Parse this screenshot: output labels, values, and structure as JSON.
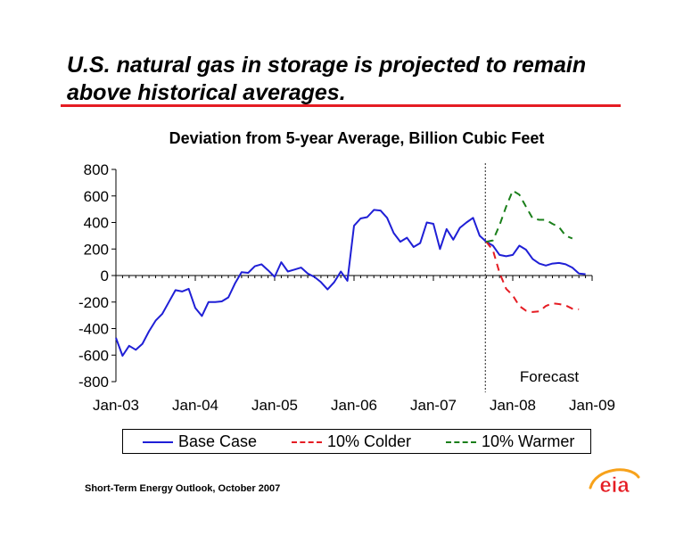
{
  "slide": {
    "title": "U.S. natural gas in storage is projected to remain above historical averages.",
    "footnote": "Short-Term Energy Outlook, October 2007",
    "logo_text": "eia"
  },
  "colors": {
    "title_rule": "#e51c23",
    "base_case": "#1f1fd6",
    "colder": "#e51c23",
    "warmer": "#1a7f1a",
    "logo_red": "#e51c23",
    "logo_orange": "#f7a21b"
  },
  "chart_data": {
    "type": "line",
    "title": "Deviation from 5-year Average, Billion Cubic Feet",
    "ylim": [
      -800,
      800
    ],
    "yticks": [
      800,
      600,
      400,
      200,
      0,
      -200,
      -400,
      -600,
      -800
    ],
    "xlim": [
      "2003-01",
      "2009-01"
    ],
    "xtick_labels": [
      "Jan-03",
      "Jan-04",
      "Jan-05",
      "Jan-06",
      "Jan-07",
      "Jan-08",
      "Jan-09"
    ],
    "forecast_start": "2007-09",
    "forecast_label": "Forecast",
    "legend_position": "bottom",
    "series": [
      {
        "name": "Base Case",
        "style": "solid",
        "color": "#1f1fd6",
        "points": [
          [
            "2003-01",
            -470
          ],
          [
            "2003-02",
            -605
          ],
          [
            "2003-03",
            -530
          ],
          [
            "2003-04",
            -560
          ],
          [
            "2003-05",
            -515
          ],
          [
            "2003-06",
            -420
          ],
          [
            "2003-07",
            -340
          ],
          [
            "2003-08",
            -290
          ],
          [
            "2003-09",
            -200
          ],
          [
            "2003-10",
            -110
          ],
          [
            "2003-11",
            -120
          ],
          [
            "2003-12",
            -100
          ],
          [
            "2004-01",
            -245
          ],
          [
            "2004-02",
            -305
          ],
          [
            "2004-03",
            -200
          ],
          [
            "2004-04",
            -200
          ],
          [
            "2004-05",
            -195
          ],
          [
            "2004-06",
            -165
          ],
          [
            "2004-07",
            -60
          ],
          [
            "2004-08",
            25
          ],
          [
            "2004-09",
            20
          ],
          [
            "2004-10",
            70
          ],
          [
            "2004-11",
            85
          ],
          [
            "2004-12",
            40
          ],
          [
            "2005-01",
            -10
          ],
          [
            "2005-02",
            100
          ],
          [
            "2005-03",
            30
          ],
          [
            "2005-04",
            45
          ],
          [
            "2005-05",
            60
          ],
          [
            "2005-06",
            15
          ],
          [
            "2005-07",
            -10
          ],
          [
            "2005-08",
            -50
          ],
          [
            "2005-09",
            -105
          ],
          [
            "2005-10",
            -50
          ],
          [
            "2005-11",
            30
          ],
          [
            "2005-12",
            -40
          ],
          [
            "2006-01",
            375
          ],
          [
            "2006-02",
            430
          ],
          [
            "2006-03",
            440
          ],
          [
            "2006-04",
            495
          ],
          [
            "2006-05",
            490
          ],
          [
            "2006-06",
            435
          ],
          [
            "2006-07",
            320
          ],
          [
            "2006-08",
            255
          ],
          [
            "2006-09",
            285
          ],
          [
            "2006-10",
            215
          ],
          [
            "2006-11",
            245
          ],
          [
            "2006-12",
            400
          ],
          [
            "2007-01",
            390
          ],
          [
            "2007-02",
            200
          ],
          [
            "2007-03",
            350
          ],
          [
            "2007-04",
            270
          ],
          [
            "2007-05",
            360
          ],
          [
            "2007-06",
            400
          ],
          [
            "2007-07",
            435
          ],
          [
            "2007-08",
            300
          ],
          [
            "2007-09",
            255
          ],
          [
            "2007-10",
            225
          ],
          [
            "2007-11",
            155
          ],
          [
            "2007-12",
            145
          ],
          [
            "2008-01",
            155
          ],
          [
            "2008-02",
            225
          ],
          [
            "2008-03",
            195
          ],
          [
            "2008-04",
            125
          ],
          [
            "2008-05",
            90
          ],
          [
            "2008-06",
            75
          ],
          [
            "2008-07",
            90
          ],
          [
            "2008-08",
            95
          ],
          [
            "2008-09",
            85
          ],
          [
            "2008-10",
            60
          ],
          [
            "2008-11",
            15
          ],
          [
            "2008-12",
            10
          ]
        ]
      },
      {
        "name": "10% Colder",
        "style": "dashed",
        "color": "#e51c23",
        "points": [
          [
            "2007-09",
            255
          ],
          [
            "2007-10",
            190
          ],
          [
            "2007-11",
            20
          ],
          [
            "2007-12",
            -100
          ],
          [
            "2008-01",
            -150
          ],
          [
            "2008-02",
            -230
          ],
          [
            "2008-03",
            -265
          ],
          [
            "2008-04",
            -275
          ],
          [
            "2008-05",
            -270
          ],
          [
            "2008-06",
            -230
          ],
          [
            "2008-07",
            -210
          ],
          [
            "2008-08",
            -215
          ],
          [
            "2008-09",
            -225
          ],
          [
            "2008-10",
            -250
          ],
          [
            "2008-11",
            -255
          ]
        ]
      },
      {
        "name": "10% Warmer",
        "style": "dashed",
        "color": "#1a7f1a",
        "points": [
          [
            "2007-09",
            255
          ],
          [
            "2007-10",
            265
          ],
          [
            "2007-11",
            380
          ],
          [
            "2007-12",
            520
          ],
          [
            "2008-01",
            640
          ],
          [
            "2008-02",
            610
          ],
          [
            "2008-03",
            520
          ],
          [
            "2008-04",
            430
          ],
          [
            "2008-05",
            420
          ],
          [
            "2008-06",
            420
          ],
          [
            "2008-07",
            390
          ],
          [
            "2008-08",
            365
          ],
          [
            "2008-09",
            300
          ],
          [
            "2008-10",
            280
          ]
        ]
      }
    ]
  }
}
